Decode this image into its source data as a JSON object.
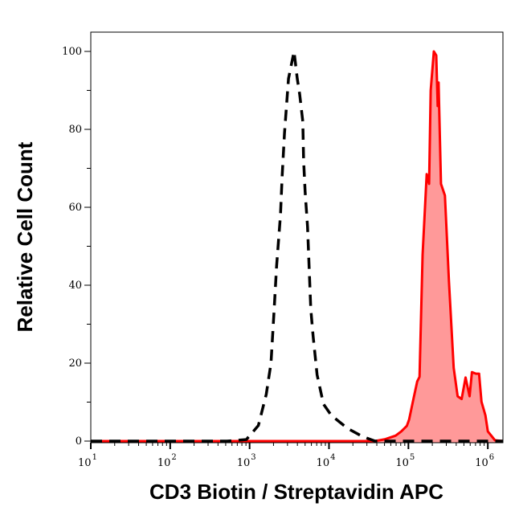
{
  "chart_data": {
    "type": "area",
    "xlabel": "CD3 Biotin / Streptavidin APC",
    "ylabel": "Relative Cell Count",
    "x_scale": "log",
    "xlim": [
      10,
      1550000
    ],
    "ylim": [
      0,
      105
    ],
    "x_ticks": [
      {
        "base": "10",
        "exp": "1",
        "value": 10
      },
      {
        "base": "10",
        "exp": "2",
        "value": 100
      },
      {
        "base": "10",
        "exp": "3",
        "value": 1000
      },
      {
        "base": "10",
        "exp": "4",
        "value": 10000
      },
      {
        "base": "10",
        "exp": "5",
        "value": 100000
      },
      {
        "base": "10",
        "exp": "6",
        "value": 1000000
      }
    ],
    "y_ticks": [
      "0",
      "20",
      "40",
      "60",
      "80",
      "100"
    ],
    "grid": false,
    "series": [
      {
        "style": "dashed-line",
        "color": "#000000",
        "x": [
          10,
          520,
          910,
          1290,
          1620,
          1860,
          2040,
          2190,
          2450,
          2570,
          2750,
          3090,
          3630,
          3980,
          4270,
          4680,
          4790,
          5010,
          5370,
          5620,
          5890,
          6310,
          7080,
          8510,
          10700,
          17000,
          26300,
          38000,
          1550000
        ],
        "y": [
          0,
          0,
          0.4,
          4,
          12,
          20,
          34,
          45,
          58,
          68,
          79,
          93,
          100,
          93,
          89,
          82,
          72,
          64,
          55,
          44.5,
          34,
          27,
          17,
          9.5,
          6.6,
          3.3,
          1.2,
          0,
          0
        ]
      },
      {
        "style": "filled-area",
        "color": "#ff0000",
        "fill": "#ff9999",
        "x": [
          10,
          25100,
          38000,
          51300,
          69200,
          81300,
          95500,
          102000,
          115000,
          129000,
          138000,
          151000,
          170000,
          182000,
          191000,
          209000,
          224000,
          234000,
          240000,
          257000,
          288000,
          324000,
          372000,
          417000,
          468000,
          525000,
          589000,
          631000,
          708000,
          776000,
          832000,
          933000,
          1000000,
          1230000,
          1550000
        ],
        "y": [
          0,
          0,
          0,
          0.5,
          1.4,
          2.5,
          3.9,
          5.5,
          10.5,
          15.3,
          16.5,
          47.8,
          68.5,
          66,
          90,
          100,
          99,
          86,
          92,
          66,
          63,
          41,
          18.8,
          11.5,
          10.8,
          16.3,
          11.5,
          17.7,
          17.3,
          17.3,
          10.1,
          6.6,
          2.5,
          0.2,
          0
        ]
      }
    ]
  }
}
